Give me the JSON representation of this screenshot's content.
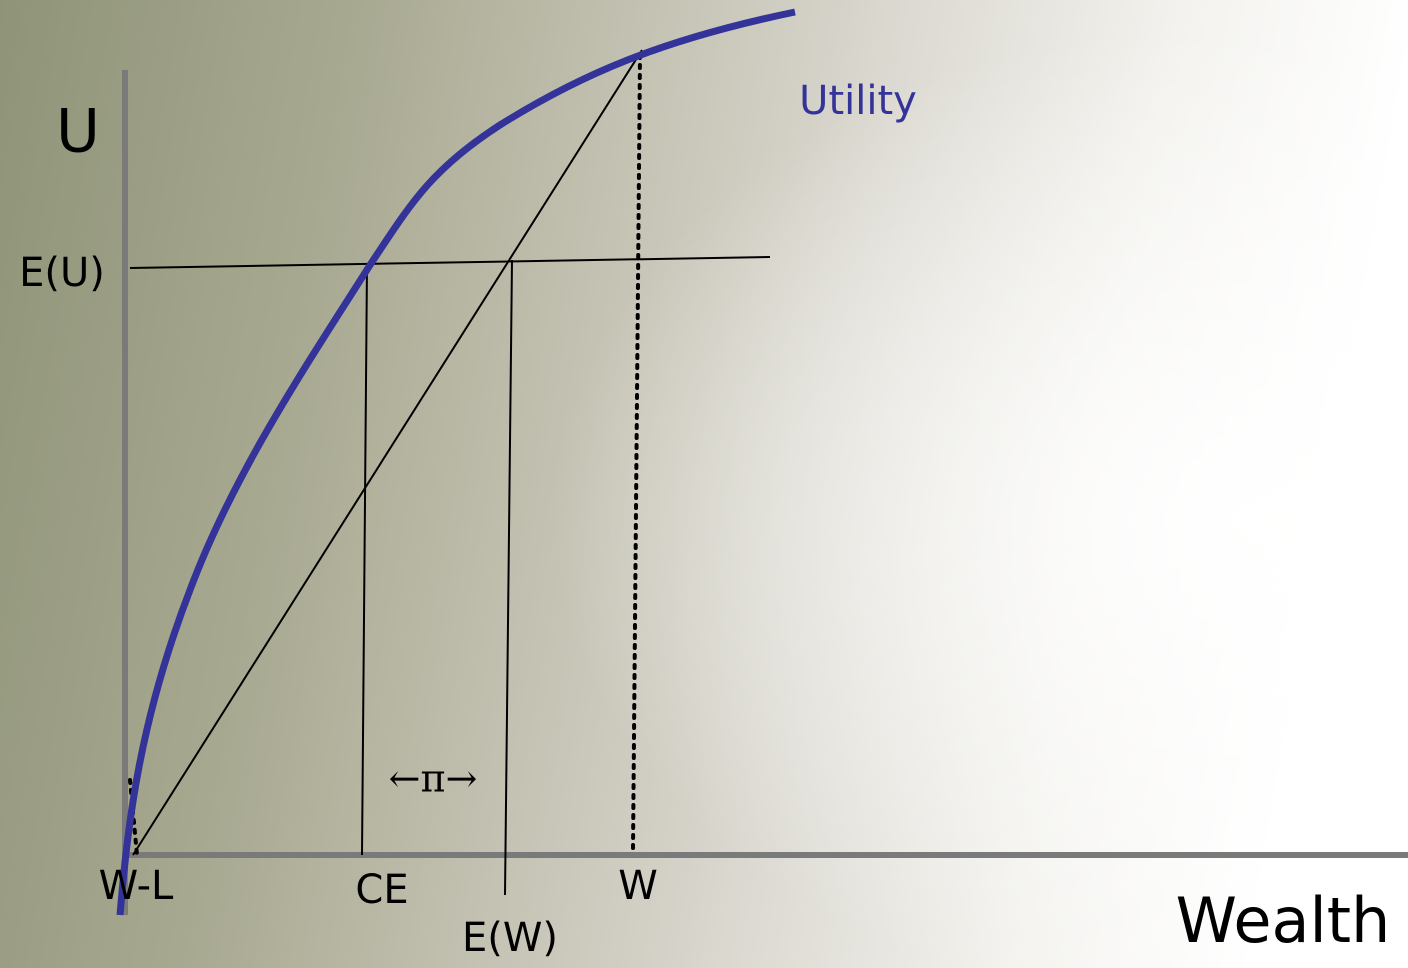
{
  "axes": {
    "y_label": "U",
    "x_label": "Wealth"
  },
  "curve": {
    "label": "Utility"
  },
  "levels": {
    "expected_utility": "E(U)"
  },
  "points": {
    "loss": "W-L",
    "certainty_equivalent": "CE",
    "expected_wealth": "E(W)",
    "wealth": "W"
  },
  "risk_premium": "←π→"
}
